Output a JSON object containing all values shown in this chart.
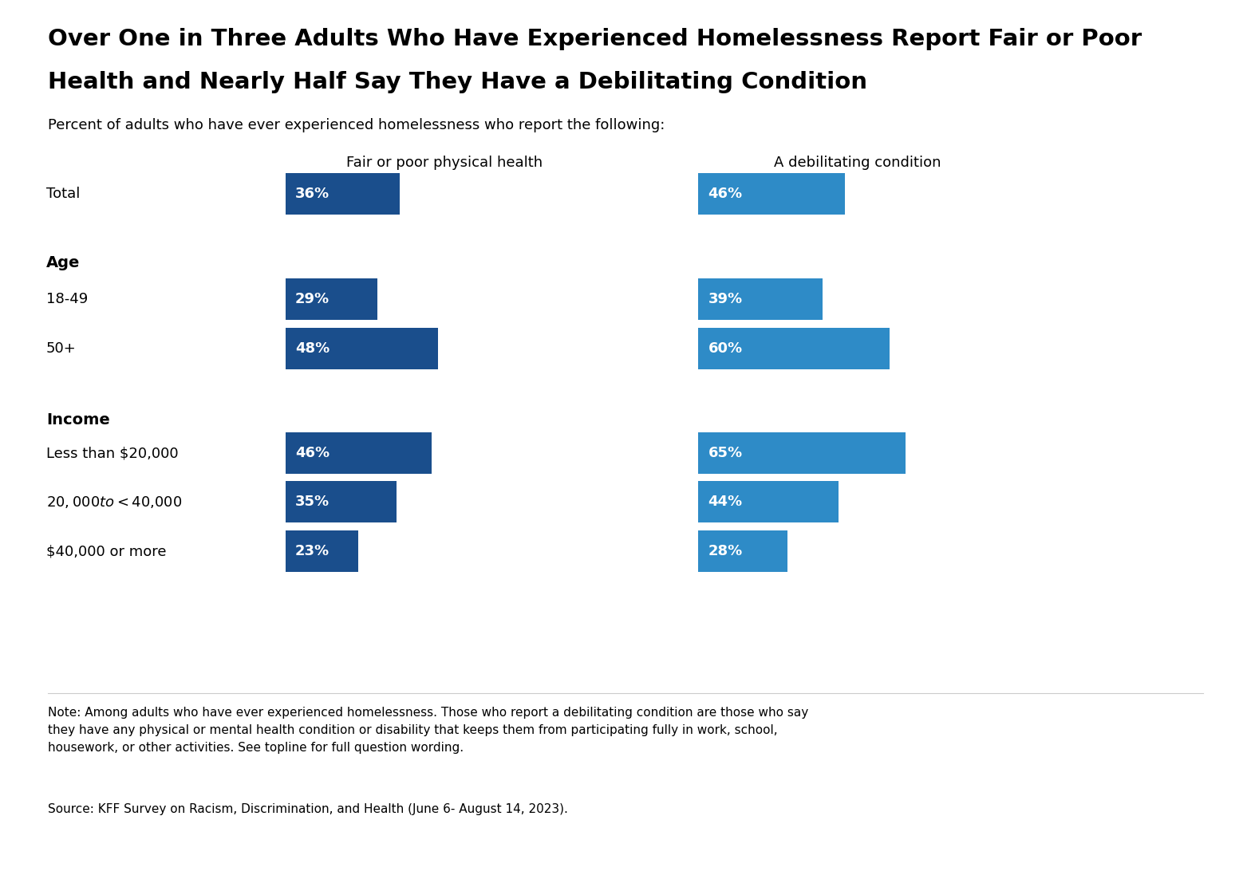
{
  "title_line1": "Over One in Three Adults Who Have Experienced Homelessness Report Fair or Poor",
  "title_line2": "Health and Nearly Half Say They Have a Debilitating Condition",
  "subtitle": "Percent of adults who have ever experienced homelessness who report the following:",
  "col1_header": "Fair or poor physical health",
  "col2_header": "A debilitating condition",
  "categories": [
    "Total",
    "Age",
    "18-49",
    "50+",
    "Income",
    "Less than $20,000",
    "$20,000 to <$40,000",
    "$40,000 or more"
  ],
  "is_header": [
    false,
    true,
    false,
    false,
    true,
    false,
    false,
    false
  ],
  "col1_values": [
    36,
    null,
    29,
    48,
    null,
    46,
    35,
    23
  ],
  "col2_values": [
    46,
    null,
    39,
    60,
    null,
    65,
    44,
    28
  ],
  "col1_color": "#1a4e8c",
  "col2_color": "#2e8bc7",
  "bar_text_color": "#ffffff",
  "note": "Note: Among adults who have ever experienced homelessness. Those who report a debilitating condition are those who say\nthey have any physical or mental health condition or disability that keeps them from participating fully in work, school,\nhousework, or other activities. See topline for full question wording.",
  "source": "Source: KFF Survey on Racism, Discrimination, and Health (June 6- August 14, 2023).",
  "title_fontsize": 21,
  "subtitle_fontsize": 13,
  "header_fontsize": 13,
  "category_fontsize": 13,
  "bar_fontsize": 13,
  "note_fontsize": 11,
  "background_color": "#ffffff"
}
